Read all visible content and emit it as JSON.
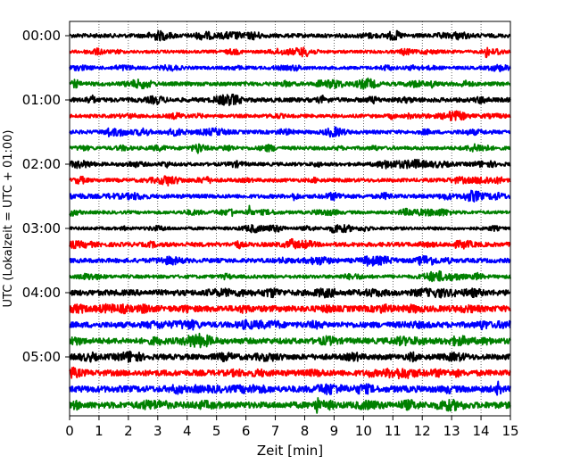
{
  "chart_data": {
    "type": "line",
    "xlabel": "Zeit  [min]",
    "ylabel": "UTC (Lokalzeit = UTC + 01:00)",
    "xlim": [
      0,
      15
    ],
    "x_ticks": [
      "0",
      "1",
      "2",
      "3",
      "4",
      "5",
      "6",
      "7",
      "8",
      "9",
      "10",
      "11",
      "12",
      "13",
      "14",
      "15"
    ],
    "y_tick_labels": [
      "00:00",
      "01:00",
      "02:00",
      "03:00",
      "04:00",
      "05:00"
    ],
    "row_interval_minutes": 15,
    "row_count": 24,
    "colors": [
      "#000000",
      "#ff0000",
      "#0000ff",
      "#008000"
    ],
    "grid": "vertical-dotted",
    "events": [
      {
        "row": 3,
        "minute": 12.4,
        "amp": 0.8
      },
      {
        "row": 1,
        "minute": 14.2,
        "amp": 0.9
      },
      {
        "row": 11,
        "minute": 5.5,
        "amp": 0.7
      },
      {
        "row": 11,
        "minute": 6.1,
        "amp": 1.1
      },
      {
        "row": 23,
        "minute": 8.4,
        "amp": 1.3
      },
      {
        "row": 22,
        "minute": 14.6,
        "amp": 0.9
      },
      {
        "row": 7,
        "minute": 4.4,
        "amp": 0.6
      },
      {
        "row": 3,
        "minute": 8.5,
        "amp": 0.6
      },
      {
        "row": 6,
        "minute": 1.3,
        "amp": 0.5
      }
    ]
  }
}
